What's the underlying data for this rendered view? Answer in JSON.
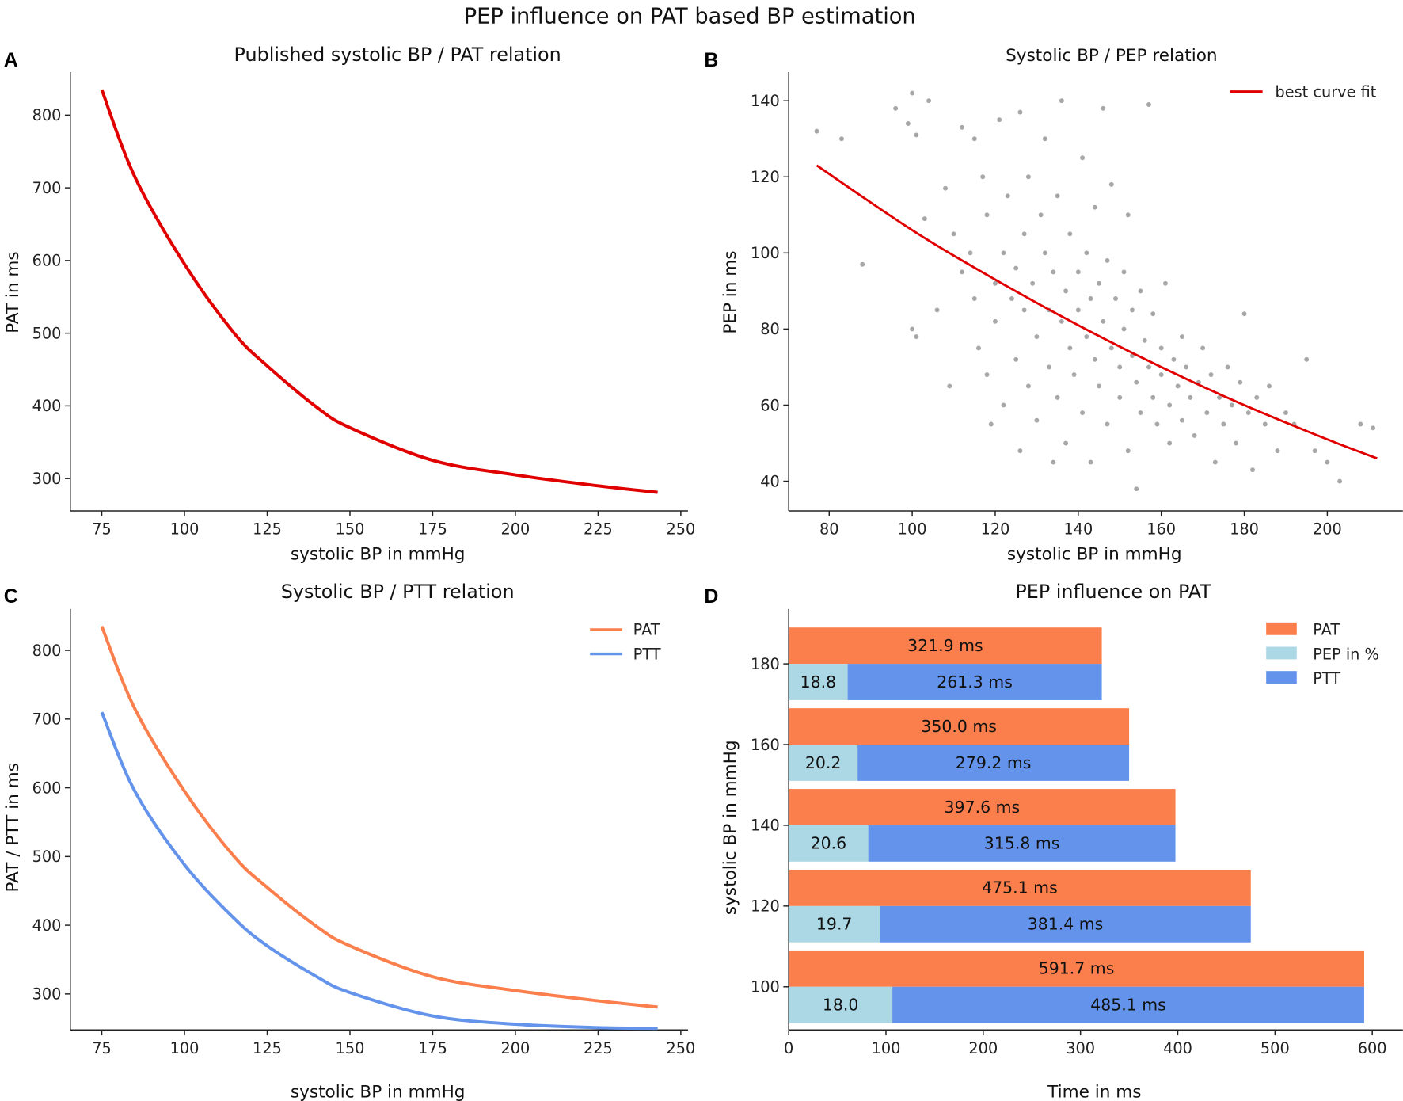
{
  "title": "PEP influence on PAT based BP estimation",
  "colors": {
    "red": "#e00000",
    "pat": "#fb7f4c",
    "ptt": "#6393ea",
    "pep": "#acd8e5",
    "scatter": "#8a8a8a"
  },
  "chart_data": [
    {
      "panel": "A",
      "type": "line",
      "title": "Published systolic BP / PAT relation",
      "xlabel": "systolic BP in mmHg",
      "ylabel": "PAT in ms",
      "xlim": [
        68,
        252
      ],
      "ylim": [
        255,
        855
      ],
      "xticks": [
        75,
        100,
        125,
        150,
        175,
        200,
        225,
        250
      ],
      "yticks": [
        300,
        400,
        500,
        600,
        700,
        800
      ],
      "series": [
        {
          "color": "#e00000",
          "x": [
            75,
            85,
            100,
            115,
            125,
            140,
            150,
            175,
            200,
            225,
            243
          ],
          "y": [
            835,
            715,
            595,
            500,
            455,
            398,
            370,
            325,
            305,
            290,
            281
          ]
        }
      ]
    },
    {
      "panel": "B",
      "type": "scatter",
      "title": "Systolic BP / PEP relation",
      "xlabel": "systolic BP in mmHg",
      "ylabel": "PEP in ms",
      "xlim": [
        68,
        218
      ],
      "ylim": [
        33,
        148
      ],
      "xticks": [
        80,
        100,
        120,
        140,
        160,
        180,
        200
      ],
      "yticks": [
        40,
        60,
        80,
        100,
        120,
        140
      ],
      "legend": {
        "position": "top-right",
        "entries": [
          "best curve fit"
        ]
      },
      "fit": {
        "name": "best curve fit",
        "x": [
          77,
          100,
          120,
          140,
          160,
          180,
          200,
          212
        ],
        "y": [
          123,
          106,
          93,
          81,
          70,
          60,
          51,
          46
        ]
      },
      "points": [
        [
          77,
          132
        ],
        [
          83,
          130
        ],
        [
          88,
          97
        ],
        [
          96,
          138
        ],
        [
          99,
          134
        ],
        [
          100,
          142
        ],
        [
          101,
          131
        ],
        [
          100,
          80
        ],
        [
          101,
          78
        ],
        [
          103,
          109
        ],
        [
          104,
          140
        ],
        [
          108,
          117
        ],
        [
          110,
          105
        ],
        [
          112,
          95
        ],
        [
          112,
          133
        ],
        [
          114,
          100
        ],
        [
          115,
          88
        ],
        [
          116,
          75
        ],
        [
          117,
          120
        ],
        [
          118,
          110
        ],
        [
          118,
          68
        ],
        [
          120,
          92
        ],
        [
          120,
          82
        ],
        [
          121,
          135
        ],
        [
          122,
          100
        ],
        [
          122,
          60
        ],
        [
          123,
          115
        ],
        [
          124,
          88
        ],
        [
          125,
          96
        ],
        [
          125,
          72
        ],
        [
          126,
          137
        ],
        [
          127,
          105
        ],
        [
          127,
          85
        ],
        [
          128,
          65
        ],
        [
          128,
          120
        ],
        [
          129,
          92
        ],
        [
          130,
          78
        ],
        [
          130,
          56
        ],
        [
          131,
          110
        ],
        [
          132,
          100
        ],
        [
          132,
          130
        ],
        [
          133,
          85
        ],
        [
          133,
          70
        ],
        [
          134,
          95
        ],
        [
          135,
          62
        ],
        [
          135,
          115
        ],
        [
          136,
          82
        ],
        [
          136,
          140
        ],
        [
          137,
          90
        ],
        [
          137,
          50
        ],
        [
          138,
          105
        ],
        [
          138,
          75
        ],
        [
          139,
          68
        ],
        [
          140,
          95
        ],
        [
          140,
          85
        ],
        [
          141,
          125
        ],
        [
          141,
          58
        ],
        [
          142,
          100
        ],
        [
          142,
          78
        ],
        [
          143,
          88
        ],
        [
          143,
          45
        ],
        [
          144,
          112
        ],
        [
          144,
          72
        ],
        [
          145,
          92
        ],
        [
          145,
          65
        ],
        [
          146,
          138
        ],
        [
          146,
          82
        ],
        [
          147,
          98
        ],
        [
          147,
          55
        ],
        [
          148,
          75
        ],
        [
          148,
          118
        ],
        [
          149,
          88
        ],
        [
          150,
          70
        ],
        [
          150,
          62
        ],
        [
          151,
          95
        ],
        [
          151,
          80
        ],
        [
          152,
          48
        ],
        [
          152,
          110
        ],
        [
          153,
          73
        ],
        [
          153,
          85
        ],
        [
          154,
          38
        ],
        [
          154,
          66
        ],
        [
          155,
          90
        ],
        [
          155,
          58
        ],
        [
          156,
          77
        ],
        [
          157,
          70
        ],
        [
          157,
          139
        ],
        [
          158,
          62
        ],
        [
          158,
          84
        ],
        [
          159,
          55
        ],
        [
          160,
          75
        ],
        [
          160,
          68
        ],
        [
          161,
          92
        ],
        [
          162,
          60
        ],
        [
          162,
          50
        ],
        [
          163,
          72
        ],
        [
          164,
          65
        ],
        [
          165,
          78
        ],
        [
          165,
          56
        ],
        [
          166,
          70
        ],
        [
          167,
          62
        ],
        [
          168,
          52
        ],
        [
          169,
          66
        ],
        [
          170,
          75
        ],
        [
          171,
          58
        ],
        [
          172,
          68
        ],
        [
          173,
          45
        ],
        [
          174,
          62
        ],
        [
          175,
          55
        ],
        [
          176,
          70
        ],
        [
          177,
          60
        ],
        [
          178,
          50
        ],
        [
          179,
          66
        ],
        [
          180,
          84
        ],
        [
          181,
          58
        ],
        [
          182,
          43
        ],
        [
          183,
          62
        ],
        [
          185,
          55
        ],
        [
          186,
          65
        ],
        [
          188,
          48
        ],
        [
          190,
          58
        ],
        [
          192,
          55
        ],
        [
          195,
          72
        ],
        [
          197,
          48
        ],
        [
          200,
          45
        ],
        [
          203,
          40
        ],
        [
          208,
          55
        ],
        [
          211,
          54
        ],
        [
          115,
          130
        ],
        [
          119,
          55
        ],
        [
          126,
          48
        ],
        [
          134,
          45
        ],
        [
          106,
          85
        ],
        [
          109,
          65
        ]
      ]
    },
    {
      "panel": "C",
      "type": "line",
      "title": "Systolic BP / PTT relation",
      "xlabel": "systolic BP in mmHg",
      "ylabel": "PAT / PTT in ms",
      "xlim": [
        68,
        252
      ],
      "ylim": [
        245,
        855
      ],
      "xticks": [
        75,
        100,
        125,
        150,
        175,
        200,
        225,
        250
      ],
      "yticks": [
        300,
        400,
        500,
        600,
        700,
        800
      ],
      "legend": {
        "position": "top-right",
        "entries": [
          "PAT",
          "PTT"
        ]
      },
      "series": [
        {
          "name": "PAT",
          "color": "#fb7f4c",
          "x": [
            75,
            85,
            100,
            115,
            125,
            140,
            150,
            175,
            200,
            225,
            243
          ],
          "y": [
            835,
            715,
            595,
            500,
            455,
            398,
            370,
            325,
            305,
            290,
            281
          ]
        },
        {
          "name": "PTT",
          "color": "#6393ea",
          "x": [
            75,
            85,
            100,
            115,
            125,
            140,
            150,
            175,
            200,
            225,
            243
          ],
          "y": [
            710,
            595,
            488,
            410,
            370,
            325,
            302,
            268,
            256,
            251,
            250
          ]
        }
      ]
    },
    {
      "panel": "D",
      "type": "bar",
      "orientation": "horizontal",
      "title": "PEP influence on PAT",
      "xlabel": "Time in ms",
      "ylabel": "systolic BP in mmHg",
      "xlim": [
        0,
        610
      ],
      "ylim": [
        90,
        190
      ],
      "xticks": [
        0,
        100,
        200,
        300,
        400,
        500,
        600
      ],
      "yticks": [
        100,
        120,
        140,
        160,
        180
      ],
      "legend": {
        "position": "top-right",
        "entries": [
          "PAT",
          "PEP in %",
          "PTT"
        ]
      },
      "categories": [
        180,
        160,
        140,
        120,
        100
      ],
      "series": [
        {
          "name": "PAT",
          "values": [
            321.9,
            350.0,
            397.6,
            475.1,
            591.7
          ],
          "labels": [
            "321.9 ms",
            "350.0 ms",
            "397.6 ms",
            "475.1 ms",
            "591.7 ms"
          ]
        },
        {
          "name": "PEP in %",
          "values": [
            18.8,
            20.2,
            20.6,
            19.7,
            18.0
          ],
          "labels": [
            "18.8",
            "20.2",
            "20.6",
            "19.7",
            "18.0"
          ]
        },
        {
          "name": "PTT",
          "values": [
            261.3,
            279.2,
            315.8,
            381.4,
            485.1
          ],
          "labels": [
            "261.3 ms",
            "279.2 ms",
            "315.8 ms",
            "381.4 ms",
            "485.1 ms"
          ]
        }
      ]
    }
  ]
}
